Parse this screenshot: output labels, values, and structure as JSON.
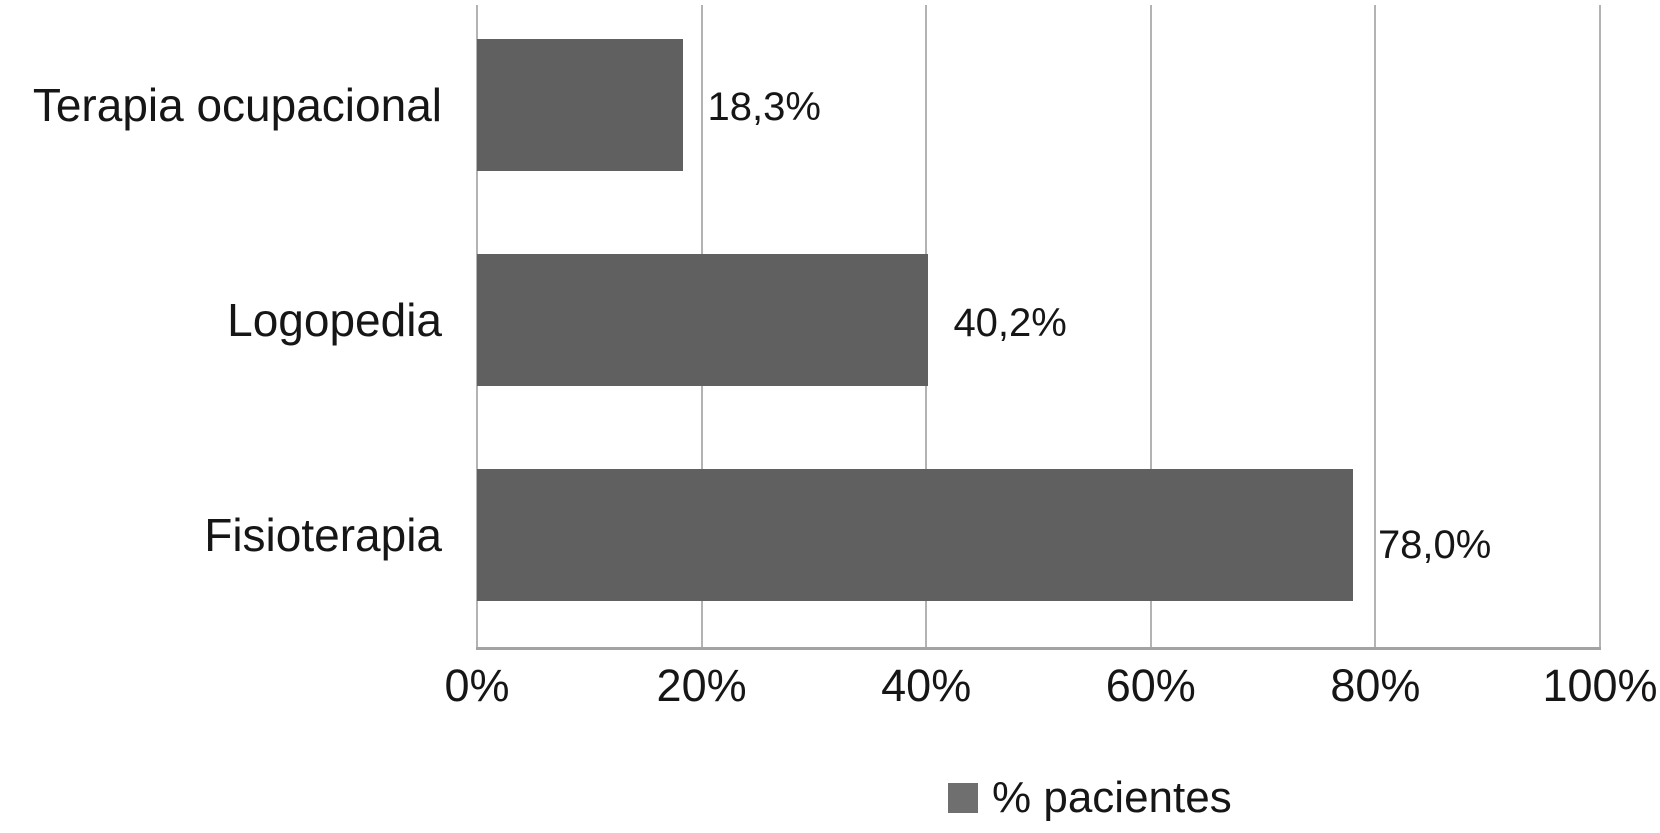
{
  "chart_data": {
    "type": "bar",
    "orientation": "horizontal",
    "categories": [
      "Terapia ocupacional",
      "Logopedia",
      "Fisioterapia"
    ],
    "values": [
      18.3,
      40.2,
      78.0
    ],
    "value_labels": [
      "18,3%",
      "40,2%",
      "78,0%"
    ],
    "x_ticks": [
      "0%",
      "20%",
      "40%",
      "60%",
      "80%",
      "100%"
    ],
    "xlim": [
      0,
      100
    ],
    "grid": true,
    "legend_position": "bottom",
    "legend": {
      "label": "% pacientes"
    }
  },
  "colors": {
    "bar": "#606060",
    "legend_swatch": "#6f6f6f",
    "gridline": "#b3b3b3",
    "axis": "#a3a3a3",
    "text": "#161616",
    "background": "#ffffff"
  }
}
